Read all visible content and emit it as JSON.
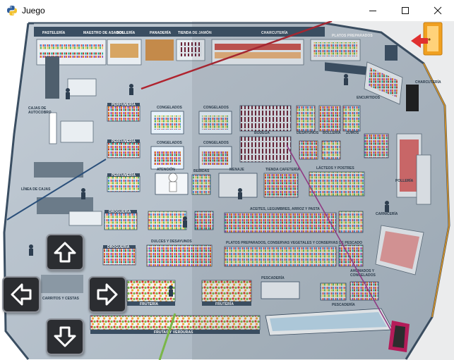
{
  "window": {
    "title": "Juego",
    "icon": "python-icon",
    "controls": [
      "minimize-icon",
      "maximize-icon",
      "close-icon"
    ]
  },
  "store": {
    "top_signs": [
      "PASTELERÍA",
      "MAESTRO DE ASADOS",
      "BOLLERÍA",
      "PANADERÍA",
      "TIENDA DE JAMÓN",
      "CHARCUTERÍA",
      "PLATOS PREPARADOS"
    ],
    "left_labels": [
      "CAJAS DE AUTOCOBRO",
      "LÍNEA DE CAJAS",
      "CARRITOS Y CESTAS"
    ],
    "aisle_signs": [
      "PERFUMERÍA",
      "PERFUMERÍA",
      "PERFUMERÍA",
      "DROGUERÍA",
      "DROGUERÍA",
      "CONGELADOS",
      "CONGELADOS",
      "CONGELADOS",
      "CONGELADOS",
      "ATENCIÓN",
      "BEBIDAS",
      "BODEGA",
      "MENAJE",
      "TIENDA CAFETERÍA",
      "REFRESCOS",
      "BODEGA",
      "DESAYUNOS",
      "BOLLERÍA",
      "LÁCTEOS Y POSTRES",
      "ACEITES, LEGUMBRES, ARROZ Y PASTA",
      "PLATOS PREPARADOS, CONSERVAS VEGETALES Y CONSERVAS DE PESCADO",
      "DULCES Y DESAYUNOS",
      "FRUTERÍA",
      "PESCADERÍA",
      "CARNICERÍA",
      "QUESOS"
    ],
    "right_signs": [
      "CHARCUTERÍA",
      "QUESOS",
      "ENCURTIDOS",
      "CARNICERÍA",
      "PESCADERÍA",
      "POLLERÍA",
      "HUEVOS Y LÁCTEOS",
      "ZUMOS",
      "SALSAS"
    ],
    "bottom_signs": [
      "FRUTAS Y VERDURAS",
      "FRUTERÍA",
      "PESCADERÍA",
      "AHUMADOS Y CONGELADOS"
    ]
  },
  "controls": {
    "up": "arrow-up-icon",
    "down": "arrow-down-icon",
    "left": "arrow-left-icon",
    "right": "arrow-right-icon",
    "exit": "exit-door-icon"
  },
  "colors": {
    "floor": "#a9b6c2",
    "wall": "#3a4e62",
    "button_bg": "#2b2d31",
    "exit_orange": "#f0a020",
    "exit_arrow": "#e03030"
  }
}
